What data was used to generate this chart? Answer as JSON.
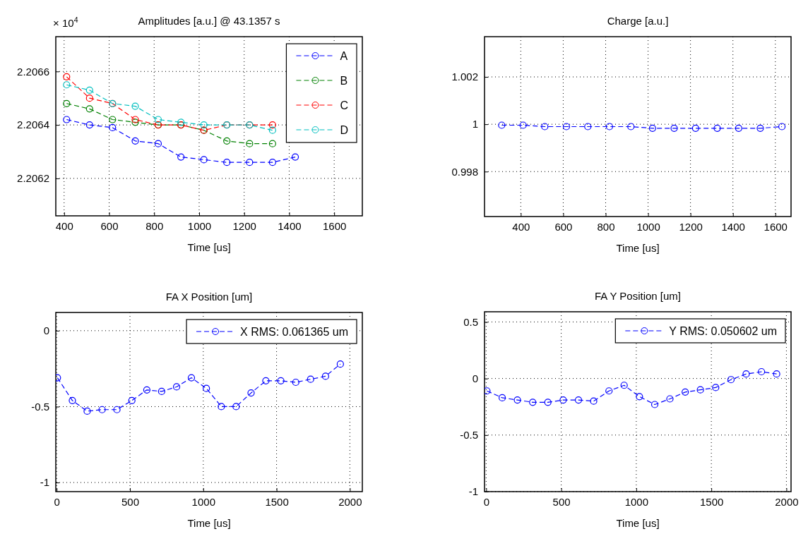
{
  "chart_data": [
    {
      "type": "line",
      "title": "Amplitudes [a.u.] @ 43.1357 s",
      "xlabel": "Time [us]",
      "annotations": [
        "× 10$^{4}$"
      ],
      "x": [
        411,
        513,
        615,
        716,
        818,
        919,
        1021,
        1123,
        1224,
        1326,
        1427
      ],
      "series": [
        {
          "name": "A",
          "color": "#0000ff",
          "values": [
            2.20642,
            2.2064,
            2.20639,
            2.20634,
            2.20633,
            2.20628,
            2.20627,
            2.20626,
            2.20626,
            2.20626,
            2.20628
          ]
        },
        {
          "name": "B",
          "color": "#008000",
          "values": [
            2.20648,
            2.20646,
            2.20642,
            2.20641,
            2.2064,
            2.2064,
            2.20638,
            2.20634,
            2.20633,
            2.20633,
            null
          ]
        },
        {
          "name": "C",
          "color": "#ff0000",
          "values": [
            2.20658,
            2.2065,
            2.20648,
            2.20642,
            2.2064,
            2.2064,
            2.20638,
            2.2064,
            2.2064,
            2.2064,
            null
          ]
        },
        {
          "name": "D",
          "color": "#00bfbf",
          "values": [
            2.20655,
            2.20653,
            2.20648,
            2.20647,
            2.20642,
            2.20641,
            2.2064,
            2.2064,
            2.2064,
            2.20638,
            null
          ]
        }
      ],
      "xlim": [
        363,
        1725
      ],
      "xticks": [
        400,
        600,
        800,
        1000,
        1200,
        1400,
        1600
      ],
      "ylim": [
        2.20606,
        2.20673
      ],
      "yticks": [
        2.2062,
        2.2064,
        2.2066
      ],
      "grid": true,
      "legend": "top right",
      "marker": "circle",
      "line_style": "dashed"
    },
    {
      "type": "line",
      "title": "Charge [a.u.]",
      "xlabel": "Time [us]",
      "x": [
        310,
        411,
        513,
        615,
        716,
        818,
        919,
        1021,
        1123,
        1224,
        1326,
        1427,
        1529,
        1631
      ],
      "series": [
        {
          "color": "#0000ff",
          "values": [
            0.99996,
            0.99996,
            0.9999,
            0.9999,
            0.9999,
            0.9999,
            0.9999,
            0.99983,
            0.99983,
            0.99983,
            0.99983,
            0.99983,
            0.99983,
            0.9999
          ]
        }
      ],
      "xlim": [
        229,
        1674
      ],
      "xticks": [
        400,
        600,
        800,
        1000,
        1200,
        1400,
        1600
      ],
      "ylim": [
        0.9961,
        1.0037
      ],
      "yticks": [
        0.998,
        1,
        1.002
      ],
      "grid": true,
      "marker": "circle",
      "line_style": "dashed"
    },
    {
      "type": "line",
      "title": "FA X Position [um]",
      "xlabel": "Time [us]",
      "x": [
        5,
        107,
        208,
        310,
        411,
        513,
        615,
        716,
        818,
        919,
        1021,
        1123,
        1224,
        1326,
        1427,
        1529,
        1631,
        1732,
        1834,
        1935
      ],
      "series": [
        {
          "name": "X RMS: 0.061365 um",
          "color": "#0000ff",
          "values": [
            -0.31,
            -0.46,
            -0.53,
            -0.52,
            -0.52,
            -0.46,
            -0.39,
            -0.4,
            -0.37,
            -0.31,
            -0.38,
            -0.5,
            -0.5,
            -0.41,
            -0.33,
            -0.33,
            -0.34,
            -0.32,
            -0.3,
            -0.22
          ]
        }
      ],
      "xlim": [
        -6,
        2085
      ],
      "xticks": [
        0,
        500,
        1000,
        1500,
        2000
      ],
      "ylim": [
        -1.06,
        0.12
      ],
      "yticks": [
        -1,
        -0.5,
        0
      ],
      "grid": true,
      "legend": "top right",
      "marker": "circle",
      "line_style": "dashed"
    },
    {
      "type": "line",
      "title": "FA Y Position [um]",
      "xlabel": "Time [us]",
      "x": [
        5,
        107,
        208,
        310,
        411,
        513,
        615,
        716,
        818,
        919,
        1021,
        1123,
        1224,
        1326,
        1427,
        1529,
        1631,
        1732,
        1834,
        1935
      ],
      "series": [
        {
          "name": "Y RMS: 0.050602 um",
          "color": "#0000ff",
          "values": [
            -0.11,
            -0.17,
            -0.19,
            -0.21,
            -0.21,
            -0.19,
            -0.19,
            -0.2,
            -0.11,
            -0.06,
            -0.16,
            -0.23,
            -0.18,
            -0.12,
            -0.1,
            -0.08,
            -0.01,
            0.04,
            0.06,
            0.04
          ]
        }
      ],
      "xlim": [
        -11,
        2031
      ],
      "xticks": [
        0,
        500,
        1000,
        1500,
        2000
      ],
      "ylim": [
        -1,
        0.59
      ],
      "yticks": [
        -1,
        -0.5,
        0,
        0.5
      ],
      "grid": true,
      "legend": "top right",
      "marker": "circle",
      "line_style": "dashed"
    }
  ]
}
